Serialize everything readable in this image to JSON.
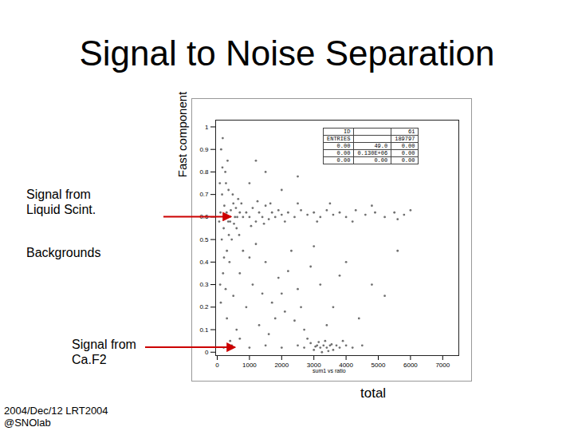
{
  "chart_data": {
    "type": "scatter",
    "title": "Signal to Noise Separation",
    "x_label": "total",
    "y_label": "Fast component",
    "plot_caption": "sum1 vs ratio",
    "color": "#333333",
    "xlim": [
      -50,
      7500
    ],
    "ylim": [
      -0.015,
      1.03
    ],
    "xticks": [
      0,
      1000,
      2000,
      3000,
      4000,
      5000,
      6000,
      7000
    ],
    "yticks": [
      0,
      0.1,
      0.2,
      0.3,
      0.4,
      0.5,
      0.6,
      0.7,
      0.8,
      0.9,
      1
    ],
    "x": [
      100,
      150,
      200,
      250,
      300,
      120,
      180,
      220,
      350,
      400,
      450,
      500,
      550,
      600,
      650,
      700,
      80,
      260,
      320,
      380,
      420,
      480,
      520,
      580,
      620,
      680,
      750,
      800,
      140,
      60,
      230,
      290,
      340,
      160,
      210,
      90,
      110,
      170,
      270,
      360,
      900,
      1000,
      1100,
      1200,
      1300,
      1400,
      1500,
      1600,
      1700,
      1800,
      1900,
      2000,
      2200,
      2400,
      2600,
      2800,
      3000,
      3200,
      3400,
      3600,
      3800,
      4000,
      4300,
      4600,
      4900,
      5200,
      5500,
      5800,
      6000,
      1050,
      1250,
      1450,
      1650,
      2100,
      2500,
      3100,
      3500,
      4200,
      4800,
      5600,
      300,
      500,
      700,
      900,
      1100,
      1300,
      1500,
      1700,
      1900,
      2100,
      2300,
      2500,
      2700,
      2900,
      400,
      800,
      1200,
      1600,
      2000,
      2400,
      3200,
      3600,
      4000,
      4400,
      4800,
      5200,
      600,
      1000,
      1400,
      1800,
      2200,
      2600,
      3000,
      3400,
      3800,
      5600,
      200,
      450,
      700,
      1000,
      1500,
      2000,
      1200,
      2500,
      2500,
      2700,
      2900,
      3000,
      3100,
      3200,
      3300,
      3400,
      3500,
      3600,
      3700,
      3800,
      4000,
      4200,
      3250,
      3350,
      3150,
      3450,
      2800,
      3900,
      2000,
      1500,
      1000,
      4500,
      3050,
      3550
    ],
    "values": [
      0.62,
      0.7,
      0.55,
      0.8,
      0.45,
      0.9,
      0.35,
      0.65,
      0.72,
      0.58,
      0.5,
      0.66,
      0.6,
      0.55,
      0.68,
      0.62,
      0.75,
      0.28,
      0.85,
      0.4,
      0.63,
      0.7,
      0.57,
      0.64,
      0.6,
      0.52,
      0.66,
      0.6,
      0.5,
      0.58,
      0.6,
      0.62,
      0.58,
      0.82,
      0.42,
      0.3,
      0.22,
      0.95,
      0.75,
      0.52,
      0.62,
      0.6,
      0.64,
      0.58,
      0.62,
      0.6,
      0.65,
      0.59,
      0.62,
      0.6,
      0.63,
      0.61,
      0.62,
      0.6,
      0.63,
      0.61,
      0.62,
      0.6,
      0.63,
      0.61,
      0.62,
      0.6,
      0.63,
      0.61,
      0.62,
      0.6,
      0.62,
      0.61,
      0.63,
      0.56,
      0.67,
      0.57,
      0.66,
      0.58,
      0.66,
      0.58,
      0.66,
      0.58,
      0.65,
      0.59,
      0.15,
      0.25,
      0.35,
      0.2,
      0.3,
      0.12,
      0.4,
      0.22,
      0.33,
      0.18,
      0.45,
      0.28,
      0.1,
      0.38,
      0.05,
      0.45,
      0.48,
      0.08,
      0.26,
      0.14,
      0.3,
      0.2,
      0.4,
      0.15,
      0.3,
      0.25,
      0.1,
      0.42,
      0.26,
      0.15,
      0.36,
      0.2,
      0.47,
      0.12,
      0.34,
      0.45,
      0.02,
      0.03,
      0.06,
      0.75,
      0.8,
      0.72,
      0.85,
      0.78,
      0.03,
      0.02,
      0.04,
      0.01,
      0.03,
      0.02,
      0.03,
      0.02,
      0.03,
      0.01,
      0.03,
      0.02,
      0.03,
      0.02,
      0.0,
      0.05,
      0.045,
      0.005,
      0.06,
      0.05,
      0.02,
      0.03,
      0.02,
      0.03,
      0.025,
      0.035
    ],
    "stats_box": [
      [
        "ID",
        "",
        "61"
      ],
      [
        "ENTRIES",
        "",
        "189797"
      ],
      [
        "0.00",
        "49.0",
        "0.00"
      ],
      [
        "0.00",
        "0.130E+06",
        "0.00"
      ],
      [
        "0.00",
        "0.00",
        "0.00"
      ]
    ],
    "annotations": [
      {
        "text": "Signal from\nLiquid Scint.",
        "y": 0.6
      },
      {
        "text": "Backgrounds"
      },
      {
        "text": "Signal from\nCa.F2",
        "y": 0.02
      }
    ],
    "footer": "2004/Dec/12 LRT2004\n@SNOlab"
  }
}
